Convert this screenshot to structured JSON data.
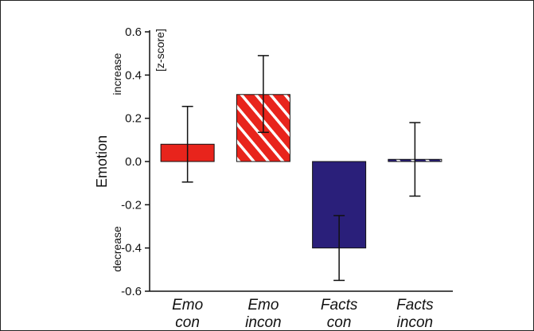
{
  "chart_data": {
    "type": "bar",
    "ylabel": "Emotion",
    "unit_label": "[z-score]",
    "increase_label": "increase",
    "decrease_label": "decrease",
    "ylim": [
      -0.6,
      0.6
    ],
    "yticks": [
      "0.6",
      "0.4",
      "0.2",
      "0.0",
      "-0.2",
      "-0.4",
      "-0.6"
    ],
    "categories": [
      {
        "line1": "Emo",
        "line2": "con"
      },
      {
        "line1": "Emo",
        "line2": "incon"
      },
      {
        "line1": "Facts",
        "line2": "con"
      },
      {
        "line1": "Facts",
        "line2": "incon"
      }
    ],
    "values": [
      0.08,
      0.31,
      -0.4,
      0.01
    ],
    "error_upper": [
      0.255,
      0.49,
      -0.25,
      0.18
    ],
    "error_lower": [
      -0.095,
      0.135,
      -0.55,
      -0.16
    ],
    "bar_colors": [
      "#e8241c",
      "#e8241c",
      "#2a1f7a",
      "#2a1f7a"
    ],
    "bar_patterns": [
      "solid",
      "striped",
      "solid",
      "striped"
    ],
    "grid": false
  }
}
